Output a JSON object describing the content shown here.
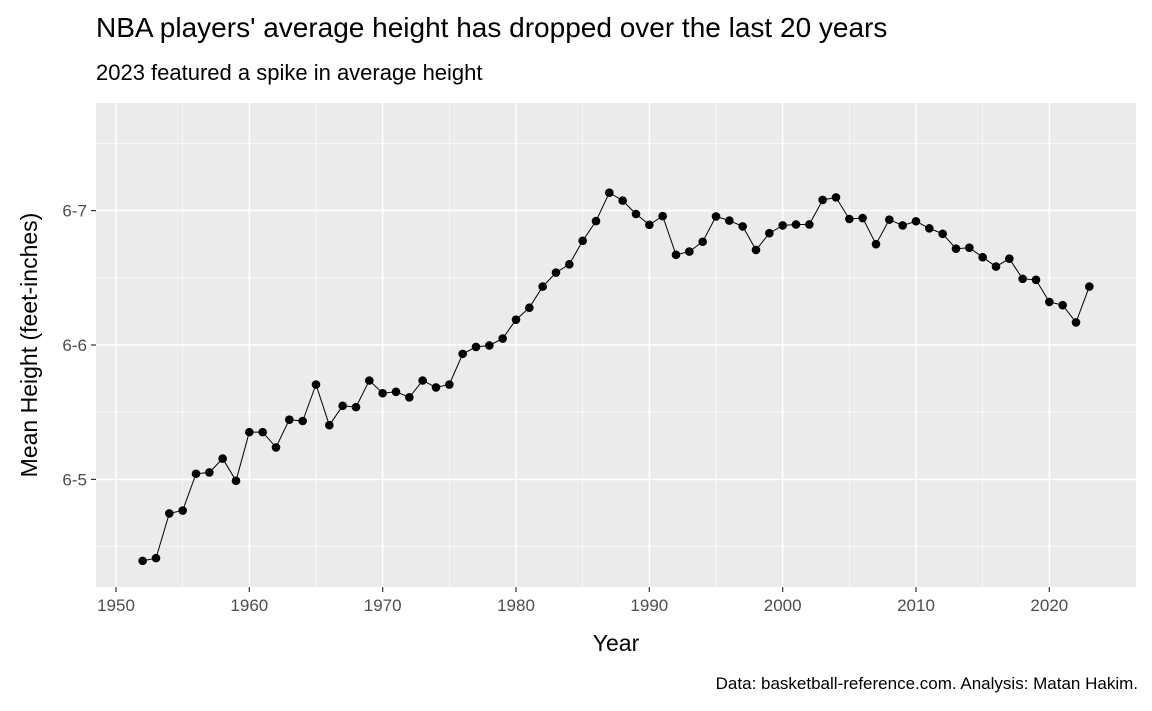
{
  "chart_data": {
    "type": "line",
    "title": "NBA players' average height has dropped over the last 20 years",
    "subtitle": "2023 featured a spike in average height",
    "caption": "Data: basketball-reference.com. Analysis: Matan Hakim.",
    "xlabel": "Year",
    "ylabel": "Mean Height (feet-inches)",
    "xlim": [
      1948.5,
      2026.5
    ],
    "ylim": [
      6.35,
      6.65
    ],
    "x_ticks": [
      1950,
      1960,
      1970,
      1980,
      1990,
      2000,
      2010,
      2020
    ],
    "x_tick_labels": [
      "1950",
      "1960",
      "1970",
      "1980",
      "1990",
      "2000",
      "2010",
      "2020"
    ],
    "y_ticks": [
      6.4167,
      6.5,
      6.5833
    ],
    "y_tick_labels": [
      "6-5",
      "6-6",
      "6-7"
    ],
    "y_unit_note": "height in feet (6-5 = 6 ft 5 in)",
    "grid": true,
    "background": "#ebebeb",
    "point_color": "#000000",
    "series": [
      {
        "x": [
          1952,
          1953,
          1954,
          1955,
          1956,
          1957,
          1958,
          1959,
          1960,
          1961,
          1962,
          1963,
          1964,
          1965,
          1966,
          1967,
          1968,
          1969,
          1970,
          1971,
          1972,
          1973,
          1974,
          1975,
          1976,
          1977,
          1978,
          1979,
          1980,
          1981,
          1982,
          1983,
          1984,
          1985,
          1986,
          1987,
          1988,
          1989,
          1990,
          1991,
          1992,
          1993,
          1994,
          1995,
          1996,
          1997,
          1998,
          1999,
          2000,
          2001,
          2002,
          2003,
          2004,
          2005,
          2006,
          2007,
          2008,
          2009,
          2010,
          2011,
          2012,
          2013,
          2014,
          2015,
          2016,
          2017,
          2018,
          2019,
          2020,
          2021,
          2022,
          2023
        ],
        "y": [
          6.3662,
          6.3679,
          6.3956,
          6.3974,
          6.4202,
          6.421,
          6.4296,
          6.4158,
          6.446,
          6.446,
          6.4365,
          6.4537,
          6.4529,
          6.4755,
          6.4503,
          6.4623,
          6.4615,
          6.478,
          6.4701,
          6.471,
          6.4676,
          6.478,
          6.4737,
          6.4755,
          6.4945,
          6.4988,
          6.4997,
          6.504,
          6.5157,
          6.5231,
          6.5362,
          6.5449,
          6.55,
          6.5646,
          6.5768,
          6.5944,
          6.5895,
          6.5812,
          6.5745,
          6.5799,
          6.5559,
          6.5579,
          6.564,
          6.5797,
          6.5771,
          6.5735,
          6.5589,
          6.5693,
          6.5741,
          6.5747,
          6.5747,
          6.5899,
          6.5915,
          6.5781,
          6.5787,
          6.5625,
          6.5777,
          6.5741,
          6.5767,
          6.5723,
          6.5689,
          6.5597,
          6.5603,
          6.5544,
          6.5486,
          6.5535,
          6.541,
          6.5404,
          6.5267,
          6.5247,
          6.514,
          6.5362
        ]
      }
    ]
  }
}
